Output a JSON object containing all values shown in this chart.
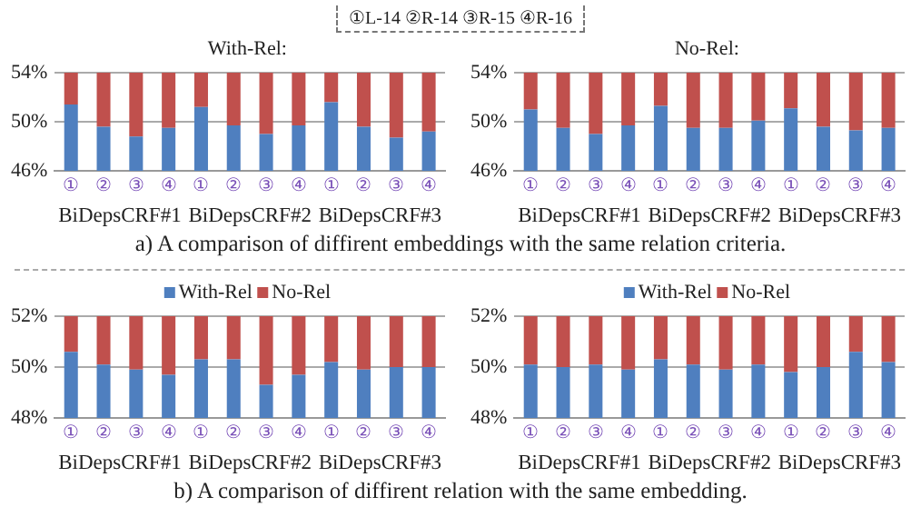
{
  "chart_data": [
    {
      "type": "bar",
      "title": "With-Rel:",
      "stacked": true,
      "grid": "y",
      "legend": false,
      "categories": [
        "①",
        "②",
        "③",
        "④",
        "①",
        "②",
        "③",
        "④",
        "①",
        "②",
        "③",
        "④"
      ],
      "ylim": [
        46,
        54
      ],
      "yticks": [
        {
          "value": 46,
          "label": "46%"
        },
        {
          "value": 50,
          "label": "50%"
        },
        {
          "value": 54,
          "label": "54%"
        }
      ],
      "series": [
        {
          "color": "#4f7fbf",
          "values": [
            51.4,
            49.6,
            48.8,
            49.5,
            51.2,
            49.7,
            49.0,
            49.7,
            51.6,
            49.6,
            48.7,
            49.2
          ]
        },
        {
          "color": "#c0504d",
          "base": [
            51.4,
            49.6,
            48.8,
            49.5,
            51.2,
            49.7,
            49.0,
            49.7,
            51.6,
            49.6,
            48.7,
            49.2
          ],
          "values": [
            2.6,
            4.4,
            5.2,
            4.5,
            2.8,
            4.3,
            5.0,
            4.3,
            2.4,
            4.4,
            5.3,
            4.8
          ]
        }
      ],
      "annotations": [
        "BiDepsCRF#1",
        "BiDepsCRF#2",
        "BiDepsCRF#3",
        "①L-14  ②R-14  ③R-15  ④R-16",
        "a) A comparison of diffirent embeddings with the same relation criteria."
      ]
    },
    {
      "type": "bar",
      "title": "No-Rel:",
      "stacked": true,
      "grid": "y",
      "legend": false,
      "categories": [
        "①",
        "②",
        "③",
        "④",
        "①",
        "②",
        "③",
        "④",
        "①",
        "②",
        "③",
        "④"
      ],
      "ylim": [
        46,
        54
      ],
      "yticks": [
        {
          "value": 46,
          "label": "46%"
        },
        {
          "value": 50,
          "label": "50%"
        },
        {
          "value": 54,
          "label": "54%"
        }
      ],
      "series": [
        {
          "color": "#4f7fbf",
          "values": [
            51.0,
            49.5,
            49.0,
            49.7,
            51.3,
            49.5,
            49.5,
            50.1,
            51.1,
            49.6,
            49.3,
            49.5
          ]
        },
        {
          "color": "#c0504d",
          "base": [
            51.0,
            49.5,
            49.0,
            49.7,
            51.3,
            49.5,
            49.5,
            50.1,
            51.1,
            49.6,
            49.3,
            49.5
          ],
          "values": [
            3.0,
            4.5,
            5.0,
            4.3,
            2.7,
            4.5,
            4.5,
            3.9,
            2.9,
            4.4,
            4.7,
            4.5
          ]
        }
      ],
      "annotations": [
        "BiDepsCRF#1",
        "BiDepsCRF#2",
        "BiDepsCRF#3"
      ]
    },
    {
      "type": "bar",
      "stacked": true,
      "grid": "y",
      "legend": "top",
      "categories": [
        "①",
        "②",
        "③",
        "④",
        "①",
        "②",
        "③",
        "④",
        "①",
        "②",
        "③",
        "④"
      ],
      "ylim": [
        48,
        52
      ],
      "yticks": [
        {
          "value": 48,
          "label": "48%"
        },
        {
          "value": 50,
          "label": "50%"
        },
        {
          "value": 52,
          "label": "52%"
        }
      ],
      "series": [
        {
          "name": "With-Rel",
          "color": "#4f7fbf",
          "values": [
            50.6,
            50.1,
            49.9,
            49.7,
            50.3,
            50.3,
            49.3,
            49.7,
            50.2,
            49.9,
            50.0,
            50.0
          ]
        },
        {
          "name": "No-Rel",
          "color": "#c0504d",
          "base": [
            50.6,
            50.1,
            49.9,
            49.7,
            50.3,
            50.3,
            49.3,
            49.7,
            50.2,
            49.9,
            50.0,
            50.0
          ],
          "values": [
            1.4,
            1.9,
            2.1,
            2.3,
            1.7,
            1.7,
            2.7,
            2.3,
            1.8,
            2.1,
            2.0,
            2.0
          ]
        }
      ],
      "annotations": [
        "BiDepsCRF#1",
        "BiDepsCRF#2",
        "BiDepsCRF#3",
        "b) A comparison of diffirent relation with the same embedding."
      ]
    },
    {
      "type": "bar",
      "stacked": true,
      "grid": "y",
      "legend": "top",
      "categories": [
        "①",
        "②",
        "③",
        "④",
        "①",
        "②",
        "③",
        "④",
        "①",
        "②",
        "③",
        "④"
      ],
      "ylim": [
        48,
        52
      ],
      "yticks": [
        {
          "value": 48,
          "label": "48%"
        },
        {
          "value": 50,
          "label": "50%"
        },
        {
          "value": 52,
          "label": "52%"
        }
      ],
      "series": [
        {
          "name": "With-Rel",
          "color": "#4f7fbf",
          "values": [
            50.1,
            50.0,
            50.1,
            49.9,
            50.3,
            50.1,
            49.9,
            50.1,
            49.8,
            50.0,
            50.6,
            50.2
          ]
        },
        {
          "name": "No-Rel",
          "color": "#c0504d",
          "base": [
            50.1,
            50.0,
            50.1,
            49.9,
            50.3,
            50.1,
            49.9,
            50.1,
            49.8,
            50.0,
            50.6,
            50.2
          ],
          "values": [
            1.9,
            2.0,
            1.9,
            2.1,
            1.7,
            1.9,
            2.1,
            1.9,
            2.2,
            2.0,
            1.4,
            1.8
          ]
        }
      ],
      "annotations": [
        "BiDepsCRF#1",
        "BiDepsCRF#2",
        "BiDepsCRF#3"
      ]
    }
  ]
}
